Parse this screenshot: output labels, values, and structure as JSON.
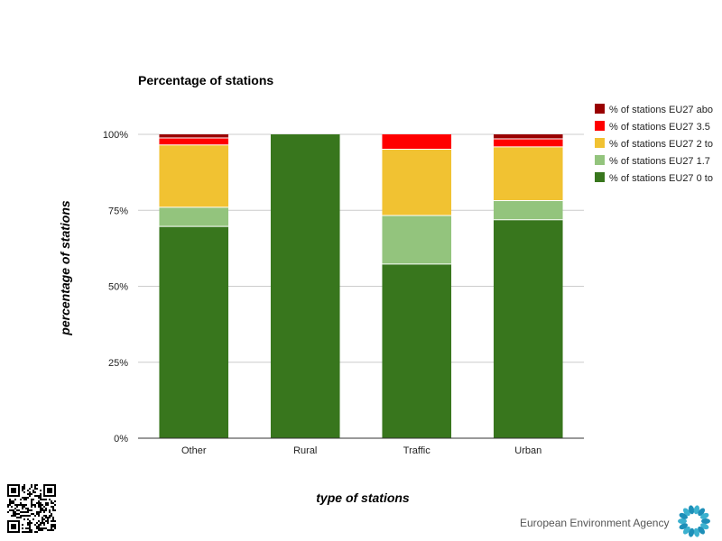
{
  "chart_data": {
    "type": "bar",
    "stacked": true,
    "title": "Percentage of stations",
    "xlabel": "type of stations",
    "ylabel": "percentage of stations",
    "categories": [
      "Other",
      "Rural",
      "Traffic",
      "Urban"
    ],
    "ylim": [
      0,
      100
    ],
    "yticks": [
      0,
      25,
      50,
      75,
      100
    ],
    "ytick_labels": [
      "0%",
      "25%",
      "50%",
      "75%",
      "100%"
    ],
    "grid": true,
    "legend_position": "right",
    "series": [
      {
        "name": "% of stations EU27 0 to",
        "color": "#38761d",
        "values": [
          69.7,
          100,
          57.3,
          71.9
        ]
      },
      {
        "name": "% of stations EU27 1.7",
        "color": "#93c47d",
        "values": [
          6.3,
          0,
          16.0,
          6.3
        ]
      },
      {
        "name": "% of stations EU27 2 to",
        "color": "#f1c232",
        "values": [
          20.5,
          0,
          21.8,
          17.7
        ]
      },
      {
        "name": "% of stations EU27 3.5",
        "color": "#ff0000",
        "values": [
          2.3,
          0,
          4.9,
          2.6
        ]
      },
      {
        "name": "% of stations EU27 abo",
        "color": "#990000",
        "values": [
          1.2,
          0,
          0,
          1.5
        ]
      }
    ]
  },
  "footer": {
    "agency_name": "European Environment Agency",
    "qr_icon": "qr-code-icon",
    "logo_icon": "eea-logo-icon"
  }
}
